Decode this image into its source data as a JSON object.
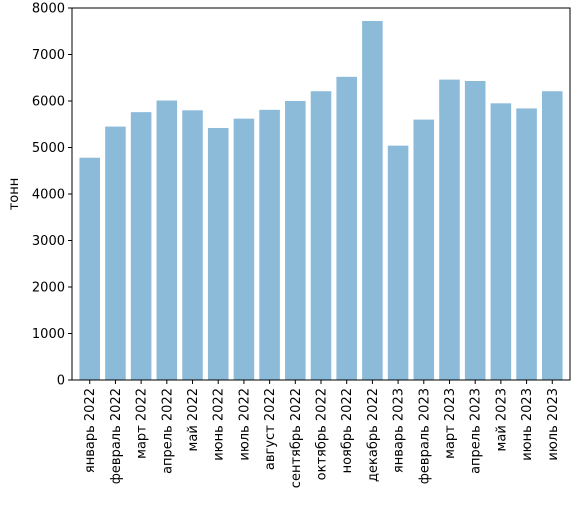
{
  "chart_data": {
    "type": "bar",
    "title": "",
    "xlabel": "",
    "ylabel": "тонн",
    "ylim": [
      0,
      8000
    ],
    "yticks": [
      0,
      1000,
      2000,
      3000,
      4000,
      5000,
      6000,
      7000,
      8000
    ],
    "grid": false,
    "bar_color": "#8cbad9",
    "categories": [
      "январь 2022",
      "февраль 2022",
      "март 2022",
      "апрель 2022",
      "май 2022",
      "июнь 2022",
      "июль 2022",
      "август 2022",
      "сентябрь 2022",
      "октябрь 2022",
      "ноябрь 2022",
      "декабрь 2022",
      "январь 2023",
      "февраль 2023",
      "март 2023",
      "апрель 2023",
      "май 2023",
      "июнь 2023",
      "июль 2023"
    ],
    "values": [
      4780,
      5450,
      5760,
      6010,
      5800,
      5420,
      5620,
      5810,
      6000,
      6210,
      6520,
      7720,
      5040,
      5600,
      6460,
      6430,
      5950,
      5840,
      6210
    ]
  }
}
